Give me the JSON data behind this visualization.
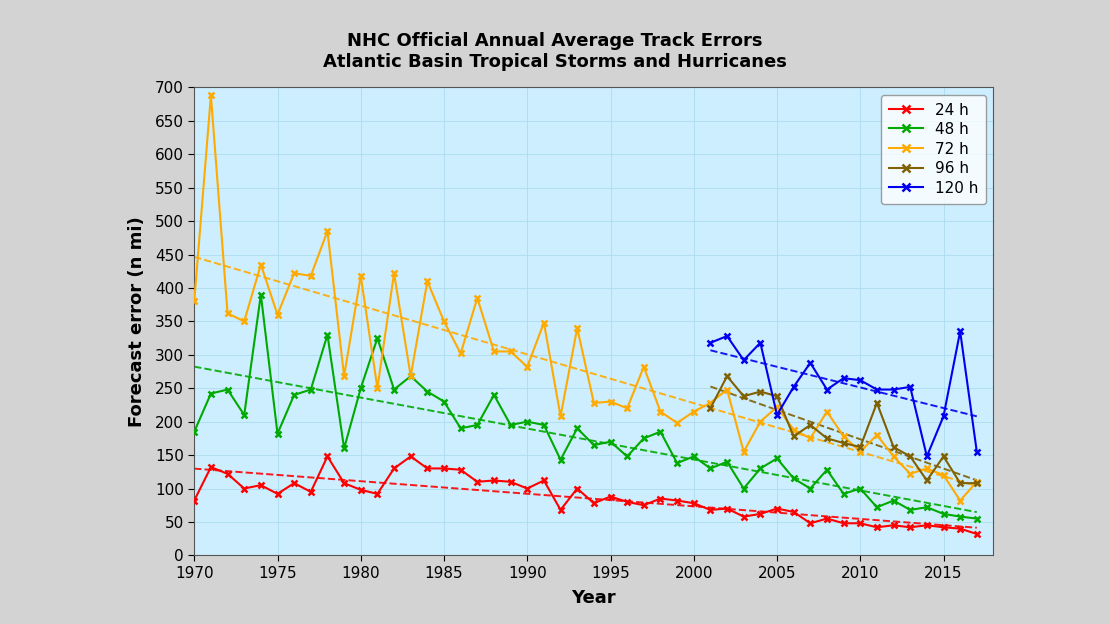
{
  "title_line1": "NHC Official Annual Average Track Errors",
  "title_line2": "Atlantic Basin Tropical Storms and Hurricanes",
  "xlabel": "Year",
  "ylabel": "Forecast error (n mi)",
  "ylim": [
    0,
    700
  ],
  "yticks": [
    0,
    50,
    100,
    150,
    200,
    250,
    300,
    350,
    400,
    450,
    500,
    550,
    600,
    650,
    700
  ],
  "xticks": [
    1970,
    1975,
    1980,
    1985,
    1990,
    1995,
    2000,
    2005,
    2010,
    2015
  ],
  "xlim": [
    1970,
    2018
  ],
  "bg_color": "#cceeff",
  "fig_bg_color": "#d3d3d3",
  "series": [
    {
      "key": "24h",
      "color": "#ff0000",
      "label": "24 h",
      "years": [
        1970,
        1971,
        1972,
        1973,
        1974,
        1975,
        1976,
        1977,
        1978,
        1979,
        1980,
        1981,
        1982,
        1983,
        1984,
        1985,
        1986,
        1987,
        1988,
        1989,
        1990,
        1991,
        1992,
        1993,
        1994,
        1995,
        1996,
        1997,
        1998,
        1999,
        2000,
        2001,
        2002,
        2003,
        2004,
        2005,
        2006,
        2007,
        2008,
        2009,
        2010,
        2011,
        2012,
        2013,
        2014,
        2015,
        2016,
        2017
      ],
      "values": [
        82,
        132,
        122,
        100,
        105,
        92,
        108,
        95,
        148,
        108,
        98,
        92,
        130,
        148,
        130,
        130,
        128,
        110,
        112,
        110,
        100,
        112,
        68,
        100,
        78,
        88,
        80,
        75,
        85,
        82,
        78,
        68,
        70,
        58,
        62,
        70,
        65,
        48,
        55,
        48,
        48,
        42,
        45,
        42,
        45,
        42,
        40,
        32
      ]
    },
    {
      "key": "48h",
      "color": "#00aa00",
      "label": "48 h",
      "years": [
        1970,
        1971,
        1972,
        1973,
        1974,
        1975,
        1976,
        1977,
        1978,
        1979,
        1980,
        1981,
        1982,
        1983,
        1984,
        1985,
        1986,
        1987,
        1988,
        1989,
        1990,
        1991,
        1992,
        1993,
        1994,
        1995,
        1996,
        1997,
        1998,
        1999,
        2000,
        2001,
        2002,
        2003,
        2004,
        2005,
        2006,
        2007,
        2008,
        2009,
        2010,
        2011,
        2012,
        2013,
        2014,
        2015,
        2016,
        2017
      ],
      "values": [
        185,
        242,
        248,
        210,
        390,
        182,
        240,
        248,
        330,
        160,
        250,
        325,
        248,
        268,
        245,
        230,
        190,
        195,
        240,
        195,
        200,
        195,
        143,
        190,
        165,
        170,
        148,
        175,
        185,
        138,
        148,
        130,
        140,
        100,
        130,
        145,
        115,
        100,
        128,
        92,
        100,
        72,
        82,
        68,
        72,
        62,
        58,
        55
      ]
    },
    {
      "key": "72h",
      "color": "#ffaa00",
      "label": "72 h",
      "years": [
        1970,
        1971,
        1972,
        1973,
        1974,
        1975,
        1976,
        1977,
        1978,
        1979,
        1980,
        1981,
        1982,
        1983,
        1984,
        1985,
        1986,
        1987,
        1988,
        1989,
        1990,
        1991,
        1992,
        1993,
        1994,
        1995,
        1996,
        1997,
        1998,
        1999,
        2000,
        2001,
        2002,
        2003,
        2004,
        2005,
        2006,
        2007,
        2008,
        2009,
        2010,
        2011,
        2012,
        2013,
        2014,
        2015,
        2016,
        2017
      ],
      "values": [
        380,
        688,
        362,
        350,
        435,
        360,
        422,
        418,
        485,
        268,
        418,
        250,
        422,
        268,
        410,
        350,
        302,
        385,
        305,
        305,
        282,
        348,
        208,
        340,
        228,
        230,
        220,
        282,
        215,
        198,
        215,
        228,
        248,
        155,
        200,
        222,
        188,
        175,
        215,
        178,
        155,
        180,
        148,
        122,
        130,
        120,
        82,
        110
      ]
    },
    {
      "key": "96h",
      "color": "#806000",
      "label": "96 h",
      "years": [
        2001,
        2002,
        2003,
        2004,
        2005,
        2006,
        2007,
        2008,
        2009,
        2010,
        2011,
        2012,
        2013,
        2014,
        2015,
        2016,
        2017
      ],
      "values": [
        220,
        268,
        238,
        245,
        238,
        178,
        195,
        175,
        168,
        162,
        228,
        162,
        148,
        112,
        148,
        108,
        108
      ]
    },
    {
      "key": "120h",
      "color": "#0000ee",
      "label": "120 h",
      "years": [
        2001,
        2002,
        2003,
        2004,
        2005,
        2006,
        2007,
        2008,
        2009,
        2010,
        2011,
        2012,
        2013,
        2014,
        2015,
        2016,
        2017
      ],
      "values": [
        318,
        328,
        292,
        318,
        210,
        252,
        288,
        248,
        265,
        262,
        248,
        248,
        252,
        148,
        208,
        335,
        155
      ]
    }
  ]
}
